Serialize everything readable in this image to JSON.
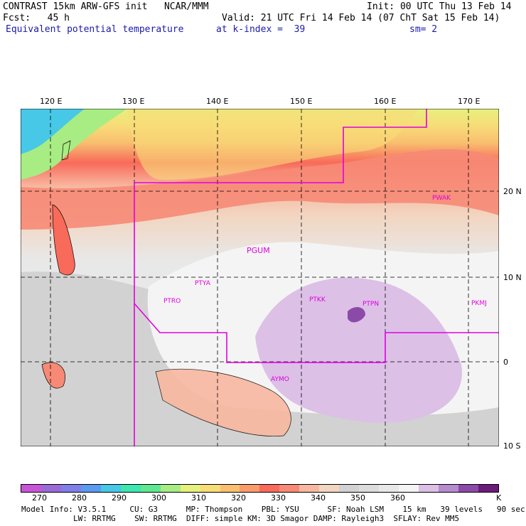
{
  "header": {
    "line1_left": "CONTRAST 15km ARW-GFS init   NCAR/MMM",
    "line1_right": "Init: 00 UTC Thu 13 Feb 14",
    "line2_left": "Fcst:   45 h",
    "line2_right": "Valid: 21 UTC Fri 14 Feb 14 (07 ChT Sat 15 Feb 14)",
    "field_name": "Equivalent potential temperature",
    "level": "at k-index =  39",
    "smoothing": "sm= 2"
  },
  "map": {
    "lon_labels": [
      "120 E",
      "130 E",
      "140 E",
      "150 E",
      "160 E",
      "170 E"
    ],
    "lat_labels": [
      "20 N",
      "10 N",
      "0",
      "10 S"
    ],
    "stations": [
      "PGUM",
      "PTYA",
      "PTRO",
      "PTKK",
      "PTPN",
      "PKMJ",
      "PWAK",
      "AYMO"
    ],
    "boundary_color": "#e000e0"
  },
  "colorbar": {
    "colors": [
      "#c855d8",
      "#9a6ad6",
      "#7f7fe8",
      "#5a9aef",
      "#46c8e6",
      "#3ee6b0",
      "#60e890",
      "#a8ec84",
      "#e6f07c",
      "#f8dc78",
      "#f8c070",
      "#fa9c6a",
      "#f86a5a",
      "#f68a76",
      "#f8b8a0",
      "#f2d6c2",
      "#d2d2d2",
      "#dcdcdc",
      "#e8e8e8",
      "#f4f4f4",
      "#dcc0e6",
      "#b58ccd",
      "#8c4aa8",
      "#6b1b7a"
    ],
    "labels": [
      "270",
      "280",
      "290",
      "300",
      "310",
      "320",
      "330",
      "340",
      "350",
      "360",
      "K"
    ]
  },
  "footer": {
    "line1": "Model Info: V3.5.1     CU: G3      MP: Thompson    PBL: YSU      SF: Noah LSM    15 km   39 levels   90 sec",
    "line2": "LW: RRTMG    SW: RRTMG  DIFF: simple KM: 3D Smagor DAMP: Rayleigh3  SFLAY: Rev MM5"
  }
}
